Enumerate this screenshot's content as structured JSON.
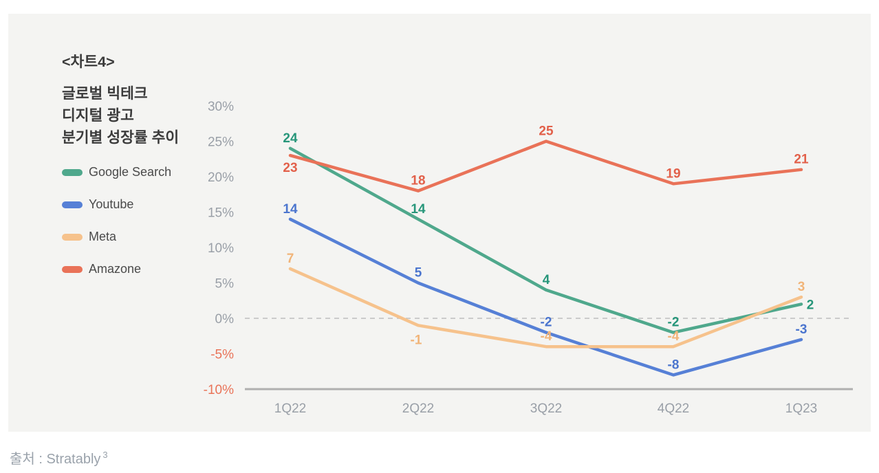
{
  "card": {
    "tag": "<차트4>",
    "title_lines": [
      "글로벌 빅테크",
      "디지털 광고",
      "분기별 성장률 추이"
    ]
  },
  "chart_data": {
    "type": "line",
    "title": "<차트4> 글로벌 빅테크 디지털 광고 분기별 성장률 추이",
    "categories": [
      "1Q22",
      "2Q22",
      "3Q22",
      "4Q22",
      "1Q23"
    ],
    "series": [
      {
        "name": "Google Search",
        "color": "#4FA88C",
        "label_color": "#27967A",
        "values": [
          24,
          14,
          4,
          -2,
          2
        ]
      },
      {
        "name": "Youtube",
        "color": "#5680D6",
        "label_color": "#4B75CE",
        "values": [
          14,
          5,
          -2,
          -8,
          -3
        ]
      },
      {
        "name": "Meta",
        "color": "#F6C28C",
        "label_color": "#F1B478",
        "values": [
          7,
          -1,
          -4,
          -4,
          3
        ]
      },
      {
        "name": "Amazone",
        "color": "#E97258",
        "label_color": "#E2604A",
        "values": [
          23,
          18,
          25,
          19,
          21
        ]
      }
    ],
    "yticks": [
      30,
      25,
      20,
      15,
      10,
      5,
      0,
      -5,
      -10
    ],
    "ytick_suffix": "%",
    "ylim": [
      -10,
      30
    ],
    "zero_line": "dashed",
    "grid": "off",
    "legend_position": "left",
    "data_labels": "on",
    "colors": {
      "tick_label": "#999FA7",
      "negative_tick_label": "#E97358",
      "axis_line": "#AFAFAF",
      "zero_line": "#CBCBCB"
    }
  },
  "source": {
    "label": "출처 : Stratably",
    "superscript": "3"
  }
}
